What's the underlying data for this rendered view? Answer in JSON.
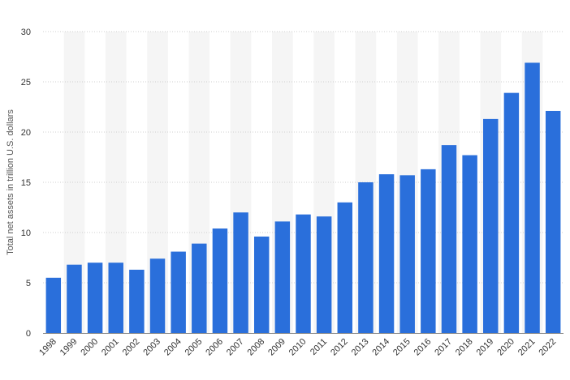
{
  "chart_data": {
    "type": "bar",
    "title": "",
    "xlabel": "",
    "ylabel": "Total net assets in trillion U.S. dollars",
    "ylim": [
      0,
      30
    ],
    "yticks": [
      0,
      5,
      10,
      15,
      20,
      25,
      30
    ],
    "grid": true,
    "bar_color": "#2a6fdb",
    "band_color": "#f5f5f5",
    "categories": [
      "1998",
      "1999",
      "2000",
      "2001",
      "2002",
      "2003",
      "2004",
      "2005",
      "2006",
      "2007",
      "2008",
      "2009",
      "2010",
      "2011",
      "2012",
      "2013",
      "2014",
      "2015",
      "2016",
      "2017",
      "2018",
      "2019",
      "2020",
      "2021",
      "2022"
    ],
    "values": [
      5.5,
      6.8,
      7.0,
      7.0,
      6.3,
      7.4,
      8.1,
      8.9,
      10.4,
      12.0,
      9.6,
      11.1,
      11.8,
      11.6,
      13.0,
      15.0,
      15.8,
      15.7,
      16.3,
      18.7,
      17.7,
      21.3,
      23.9,
      26.9,
      22.1
    ]
  }
}
